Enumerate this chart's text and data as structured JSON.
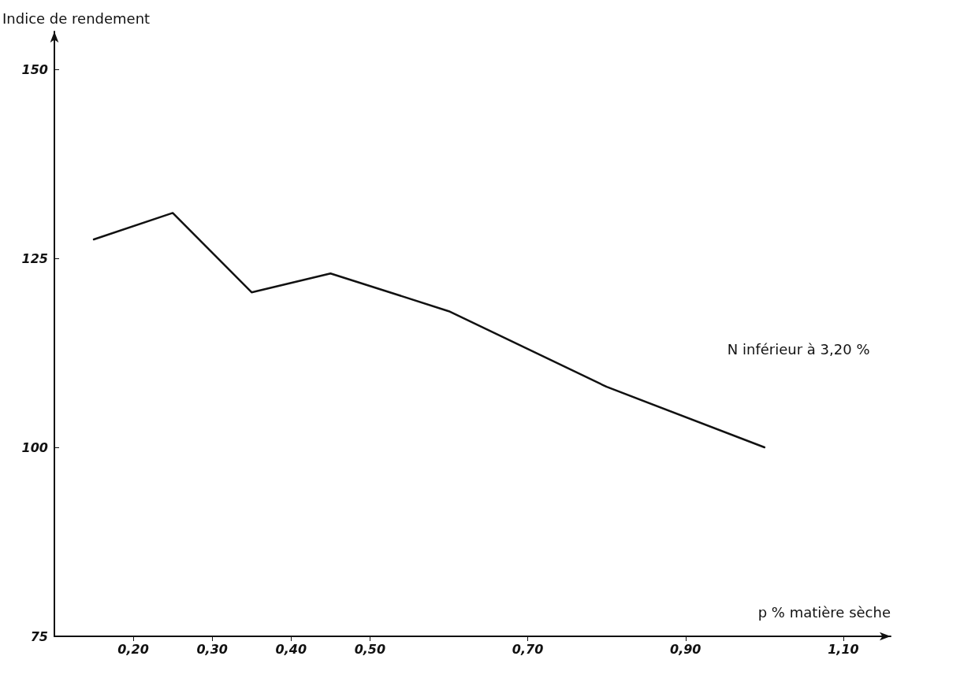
{
  "chart_data": {
    "type": "line",
    "xlabel": "p % matière sèche",
    "ylabel": "Indice de rendement",
    "x": [
      0.15,
      0.25,
      0.35,
      0.45,
      0.6,
      0.8,
      1.0
    ],
    "series": [
      {
        "name": "N inférieur à 3,20 %",
        "color": "#111111",
        "values": [
          127.5,
          131,
          120.5,
          123,
          118,
          108,
          100
        ]
      }
    ],
    "xlim": [
      0.1,
      1.16
    ],
    "xticks": [
      {
        "value": 0.2,
        "label": "0,20"
      },
      {
        "value": 0.3,
        "label": "0,30"
      },
      {
        "value": 0.4,
        "label": "0,40"
      },
      {
        "value": 0.5,
        "label": "0,50"
      },
      {
        "value": 0.7,
        "label": "0,70"
      },
      {
        "value": 0.9,
        "label": "0,90"
      },
      {
        "value": 1.1,
        "label": "1,10"
      }
    ],
    "ylim": [
      75,
      155
    ],
    "yticks": [
      75,
      100,
      125,
      150
    ],
    "grid": false,
    "legend": false,
    "marker": "none",
    "line_style": "solid"
  }
}
